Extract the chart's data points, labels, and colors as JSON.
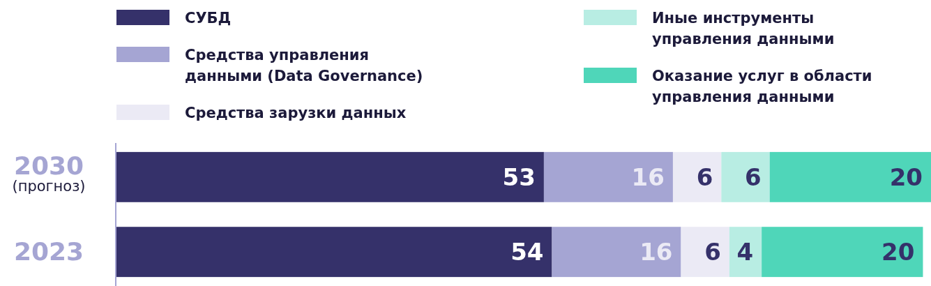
{
  "chart_data": {
    "type": "bar",
    "orientation": "horizontal",
    "stacked": true,
    "data_labels": true,
    "legend": "top",
    "categories": [
      "2030\n(прогноз)",
      "2023"
    ],
    "series": [
      {
        "name": "СУБД",
        "color": "#35316a",
        "values": [
          53,
          54
        ]
      },
      {
        "name": "Средства управления данными (Data Governance)",
        "color": "#a5a5d3",
        "values": [
          16,
          16
        ]
      },
      {
        "name": "Средства зарузки данных",
        "color": "#ebeaf5",
        "values": [
          6,
          6
        ]
      },
      {
        "name": "Иные инструменты управления данными",
        "color": "#b8ede3",
        "values": [
          6,
          4
        ]
      },
      {
        "name": "Оказание услуг в области управления данными",
        "color": "#4fd6b9",
        "values": [
          20,
          20
        ]
      }
    ]
  }
}
